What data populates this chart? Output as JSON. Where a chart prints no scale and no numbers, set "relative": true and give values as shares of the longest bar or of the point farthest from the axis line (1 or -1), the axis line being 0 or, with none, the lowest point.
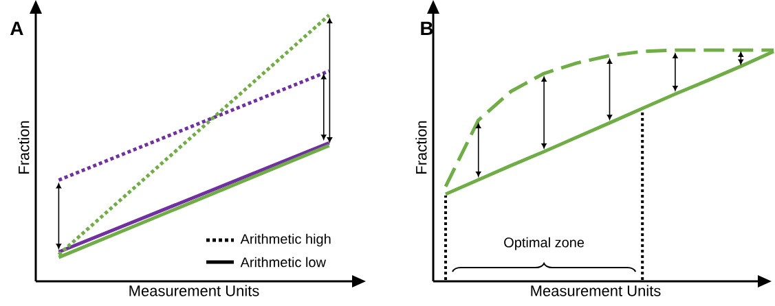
{
  "chart_data": [
    {
      "type": "line",
      "title": "A",
      "xlabel": "Measurement Units",
      "ylabel": "Fraction",
      "relative": true,
      "categories": [
        null,
        null
      ],
      "annotations": [
        "Arithmetic high",
        "Arithmetic low"
      ],
      "series": [
        {
          "color": "#7030a0",
          "line_style": "dotted",
          "values": [
            0.38,
            0.79
          ]
        },
        {
          "color": "#7030a0",
          "line_style": "solid",
          "values": [
            0.11,
            0.52
          ]
        },
        {
          "color": "#70ad47",
          "line_style": "dotted",
          "values": [
            0.1,
            1.0
          ]
        },
        {
          "color": "#70ad47",
          "line_style": "solid",
          "values": [
            0.09,
            0.51
          ]
        }
      ]
    },
    {
      "type": "line",
      "title": "B",
      "xlabel": "Measurement Units",
      "ylabel": "Fraction",
      "relative": true,
      "categories": [
        null,
        null,
        null,
        null,
        null,
        null,
        null,
        null,
        null,
        null,
        null
      ],
      "annotations": [
        "Optimal zone"
      ],
      "series": [
        {
          "color": "#70ad47",
          "line_style": "dashed",
          "values": [
            0.41,
            0.697,
            0.822,
            0.899,
            0.944,
            0.976,
            0.994,
            1,
            1,
            1,
            1
          ]
        },
        {
          "color": "#70ad47",
          "line_style": "solid",
          "values": [
            0.377,
            0.439,
            0.501,
            0.561,
            0.623,
            0.685,
            0.748,
            0.81,
            0.869,
            0.93,
            0.994
          ]
        }
      ]
    }
  ]
}
